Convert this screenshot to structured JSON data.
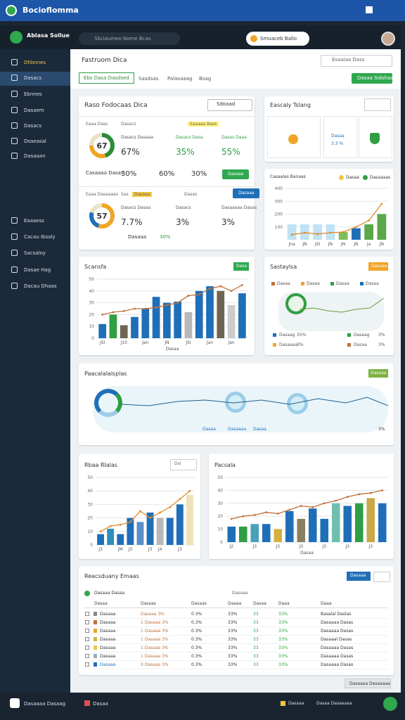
{
  "titlebar": {
    "title": "Bocioflomma"
  },
  "header": {
    "brand": "Ablasa Sollue",
    "search": "Sbciaumeo Nome Bcas",
    "account": "Smuaceb Ballo"
  },
  "sidebar": {
    "groups": [
      [
        "Dhbnnes",
        "Dasacs",
        "Ebnnes",
        "Dasaem",
        "Dasacs",
        "Dsaeasal",
        "Dasaaan"
      ],
      [
        "Eaaaess",
        "Cacau Ibsaly",
        "Sacsaloy",
        "Dasae Hag",
        "Dacau Dhaas"
      ]
    ]
  },
  "toolbar": {
    "title": "Fastruom Dica",
    "search": "Esaaiaa Dass",
    "tabs": [
      "Ebs Dasa Dasdsed",
      "Sasdsas",
      "Palasaaag",
      "Bsag"
    ],
    "button": "Dasaa Sidshas"
  },
  "kpi": {
    "title": "Raso Fodocaas Dica",
    "select": "Sdoaad",
    "sections": [
      {
        "header": [
          "Eaaa Dass",
          "Dasacs",
          "Eaaaaa Bass"
        ],
        "donut": {
          "center": "67",
          "segments": [
            {
              "value": 45,
              "color": "#2e8b3a"
            },
            {
              "value": 30,
              "color": "#f0a526"
            },
            {
              "value": 25,
              "color": "#e9e2c4"
            }
          ]
        },
        "metrics": [
          {
            "label": "Dasacs Dasaaa",
            "value": "67%"
          },
          {
            "label": "Dasacs Dasa",
            "value": "35%"
          },
          {
            "label": "Dasas Daaa",
            "value": "55%"
          }
        ],
        "footer": [
          "Casaaaa Dasas",
          "30%",
          "60%",
          "30%"
        ],
        "button": "Dasaaa"
      },
      {
        "header": [
          "Eaaa Dasaaaas",
          "Sas",
          "Dasaaa",
          "Dasas"
        ],
        "donut": {
          "center": "57",
          "segments": [
            {
              "value": 55,
              "color": "#f0a526"
            },
            {
              "value": 25,
              "color": "#1f6fb8"
            },
            {
              "value": 20,
              "color": "#e9e2c4"
            }
          ]
        },
        "metrics": [
          {
            "label": "Dasacs Dasaa",
            "value": "7.7%"
          },
          {
            "label": "Dasacs",
            "value": "3%"
          },
          {
            "label": "Dasaaaaa Dasas",
            "value": "3%"
          }
        ],
        "footer": [
          "Dasaaa",
          "30%"
        ],
        "button": "Dasaaa"
      }
    ]
  },
  "focus": {
    "title": "Eascaly Tslang",
    "tiles": [
      "Dasaa",
      "3.3 %"
    ]
  },
  "trend": {
    "title": "Casaalas Banaas",
    "legend": [
      "Dasaa",
      "Dasaaaas"
    ],
    "ylim": [
      0,
      400
    ],
    "yticks": [
      100,
      200,
      300,
      400
    ],
    "categories": [
      "Jna",
      "JN",
      "JSI",
      "JN",
      "JN",
      "JN",
      "Ja",
      "JN"
    ],
    "bars": {
      "values": [
        120,
        120,
        120,
        120,
        60,
        90,
        120,
        200
      ],
      "colors": [
        "#bfe3f5",
        "#bfe3f5",
        "#bfe3f5",
        "#bfe3f5",
        "#7fbf5a",
        "#1f6fb8",
        "#5aa84a",
        "#5aa84a"
      ]
    },
    "line": {
      "values": [
        40,
        55,
        45,
        55,
        60,
        100,
        150,
        280
      ],
      "color": "#e08a2e"
    }
  },
  "scans": {
    "title": "Scansfa",
    "badge": "Dasa",
    "ylim": [
      0,
      50
    ],
    "yticks": [
      0,
      10,
      20,
      30,
      40,
      50
    ],
    "categories": [
      "JSI",
      null,
      "J10",
      null,
      "Jan",
      null,
      "JN",
      null,
      "JSI",
      null,
      "Jan",
      null,
      "Jan",
      null
    ],
    "xlabel": "Dasaa",
    "bars": {
      "values": [
        12,
        20,
        11,
        18,
        25,
        35,
        30,
        31,
        22,
        40,
        44,
        40,
        28,
        38
      ],
      "colors": [
        "#1f6fb8",
        "#2f9e44",
        "#6d6552",
        "#1f6fb8",
        "#1f6fb8",
        "#1f6fb8",
        "#1f6fb8",
        "#1f6fb8",
        "#b8b8b8",
        "#1f6fb8",
        "#1f6fb8",
        "#6d6552",
        "#cccccc",
        "#1f6fb8"
      ]
    },
    "line": {
      "values": [
        20,
        22,
        23,
        25,
        25,
        26,
        28,
        30,
        36,
        37,
        42,
        44,
        40,
        45
      ],
      "color": "#c0703a"
    }
  },
  "geo": {
    "title": "Sastaylsa",
    "badge": "Dasaaa",
    "legend": [
      "Dasaa",
      "Dasaa",
      "Dasaa",
      "Dasaa"
    ],
    "rows": [
      {
        "label": "Dasaag",
        "value": "35%"
      },
      {
        "label": "Dasaag",
        "value": "3%"
      },
      {
        "label": "Dasaaaa",
        "value": "3%"
      },
      {
        "label": "Dasaa",
        "value": "3%"
      }
    ]
  },
  "wide": {
    "title": "Paacalalalsplas",
    "badge": "Dasaaa",
    "legend": [
      "Dasaa",
      "Dasaaaa",
      "Dasaa"
    ],
    "value": "3%"
  },
  "rates": {
    "title": "Rbaa Rlalas",
    "select": "Dsi",
    "ylim": [
      0,
      50
    ],
    "yticks": [
      0,
      10,
      20,
      30,
      40,
      50
    ],
    "categories": [
      "J3",
      null,
      "JM",
      "J3",
      null,
      "J3",
      "J4",
      null,
      "J3",
      null
    ],
    "bars": {
      "values": [
        8,
        12,
        8,
        20,
        17,
        24,
        20,
        20,
        30,
        37
      ],
      "colors": [
        "#1f6fb8",
        "#2f8fb8",
        "#1f6fb8",
        "#1f6fb8",
        "#5a8fc8",
        "#1f6fb8",
        "#b8b8b8",
        "#1f6fb8",
        "#1f6fb8",
        "#efe2b8"
      ]
    },
    "line": {
      "values": [
        10,
        14,
        15,
        17,
        25,
        20,
        24,
        28,
        34,
        40
      ],
      "color": "#e08a2e"
    }
  },
  "pacs": {
    "title": "Pacsala",
    "ylim": [
      0,
      50
    ],
    "yticks": [
      0,
      10,
      20,
      30,
      40,
      50
    ],
    "categories": [
      "J2",
      null,
      "J3",
      null,
      "J3",
      null,
      "J3",
      null,
      "J3",
      null,
      "J3",
      null,
      "J3",
      null
    ],
    "xlabel": "Dasaa",
    "bars": {
      "values": [
        12,
        12,
        14,
        14,
        10,
        24,
        18,
        26,
        18,
        30,
        28,
        30,
        34,
        30
      ],
      "colors": [
        "#1f6fb8",
        "#2f9e44",
        "#4aa0b8",
        "#1f6fb8",
        "#d4b040",
        "#1f6fb8",
        "#8a8060",
        "#1f6fb8",
        "#1f6fb8",
        "#6fbfb0",
        "#1f6fb8",
        "#2f9e44",
        "#c8a848",
        "#1f6fb8"
      ]
    },
    "line": {
      "values": [
        18,
        20,
        21,
        23,
        22,
        25,
        28,
        27,
        30,
        32,
        35,
        37,
        38,
        40
      ],
      "color": "#c0703a"
    }
  },
  "table": {
    "title": "Reacsduany Emaas",
    "button": "Dasaaa",
    "filter": "Dasaaa Dasaa",
    "sub": "Dasaaa",
    "columns": [
      "Dasaa",
      "Dasaas",
      "Dasaas",
      "Daaaa",
      "Dasaa",
      "Daaa",
      "Daaa"
    ],
    "rows": [
      [
        "Dasaaa",
        "Dasaaa 3%",
        "0.3%",
        "33%",
        "33",
        "33%",
        "Basalal Daslas"
      ],
      [
        "Dasaaa",
        "1 Dasaaa 3%",
        "0.3%",
        "33%",
        "33",
        "33%",
        "Dasaaaa Dasas"
      ],
      [
        "Dasaaa",
        "1 Dasaaa 3%",
        "0.3%",
        "33%",
        "33",
        "33%",
        "Dasaaaa Dasas"
      ],
      [
        "Dasaaa",
        "1 Dasaaa 3%",
        "0.3%",
        "33%",
        "33",
        "33%",
        "Dasaaal Dasas"
      ],
      [
        "Dasaaa",
        "1 Dasaaa 3%",
        "0.3%",
        "33%",
        "33",
        "33%",
        "Dasaaaa Dasas"
      ],
      [
        "Dasaaa",
        "1 Dasaaa 3%",
        "0.3%",
        "33%",
        "33",
        "33%",
        "Dasaaaa Dasas"
      ],
      [
        "Dasaaa",
        "0 Dasaaa 3%",
        "0.3%",
        "33%",
        "33",
        "33%",
        "Dasaaaa Dasas"
      ]
    ],
    "footer": "Dasaaaa Dasaaaaa"
  },
  "statusbar": {
    "left": "Dasaaaa Dasaag",
    "mid": "Dasaa",
    "right": [
      "Dasaaa",
      "Dasaa Dasaaaaa"
    ]
  }
}
